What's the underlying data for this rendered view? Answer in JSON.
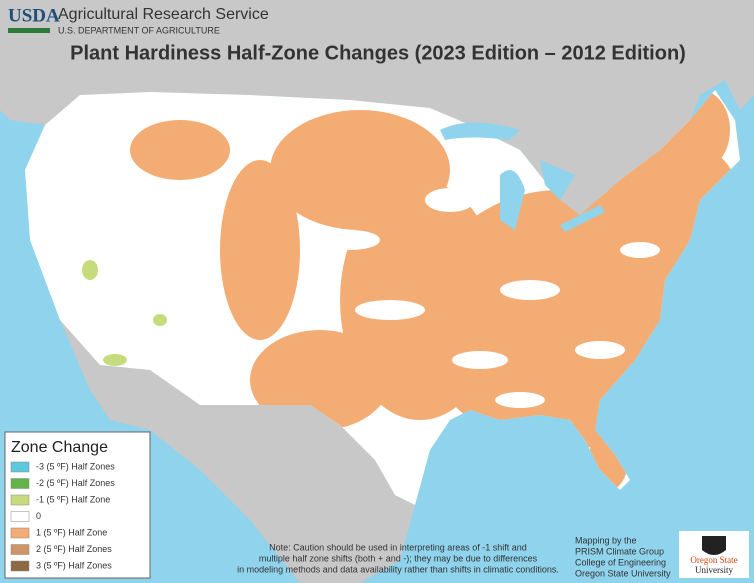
{
  "header": {
    "agency_short": "USDA",
    "agency": "Agricultural Research Service",
    "department": "U.S. DEPARTMENT OF AGRICULTURE",
    "title": "Plant Hardiness Half-Zone Changes (2023 Edition – 2012 Edition)"
  },
  "legend": {
    "title": "Zone Change",
    "items": [
      {
        "label": "-3 (5 ºF) Half Zones",
        "color": "#5cc8dc"
      },
      {
        "label": "-2 (5 ºF) Half Zones",
        "color": "#62b54a"
      },
      {
        "label": "-1 (5 ºF) Half Zone",
        "color": "#c6dc7c"
      },
      {
        "label": "0",
        "color": "#ffffff"
      },
      {
        "label": "1 (5 ºF) Half Zone",
        "color": "#f3ac74"
      },
      {
        "label": "2 (5 ºF) Half Zones",
        "color": "#cf9566"
      },
      {
        "label": "3 (5 ºF) Half Zones",
        "color": "#8c6843"
      }
    ]
  },
  "note": [
    "Note:  Caution should be used in interpreting areas of -1 shift and",
    "multiple half zone shifts (both + and -); they may be due to differences",
    "in modeling methods and data availability rather than shifts in climatic conditions."
  ],
  "credit": [
    "Mapping by the",
    "PRISM Climate Group",
    "College of Engineering",
    "Oregon State University"
  ],
  "logo": [
    "Oregon State",
    "University"
  ]
}
